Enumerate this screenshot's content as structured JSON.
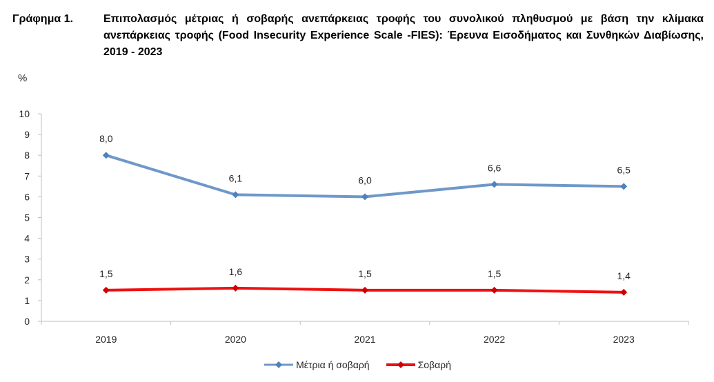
{
  "title": {
    "label": "Γράφημα 1.",
    "text": "Επιπολασμός μέτριας ή σοβαρής ανεπάρκειας τροφής του συνολικού πληθυσμού με βάση την κλίμακα ανεπάρκειας τροφής (Food Insecurity Experience Scale -FIES): Έρευνα Εισοδήματος και Συνθηκών Διαβίωσης, 2019 - 2023"
  },
  "colors": {
    "moderate": "#6f98c9",
    "severe": "#ee1111",
    "axis": "#bfbfbf",
    "text": "#262626"
  },
  "chart_data": {
    "type": "line",
    "ylabel": "%",
    "categories": [
      "2019",
      "2020",
      "2021",
      "2022",
      "2023"
    ],
    "ylim": [
      0,
      10
    ],
    "yticks": [
      0,
      1,
      2,
      3,
      4,
      5,
      6,
      7,
      8,
      9,
      10
    ],
    "grid": false,
    "legend_position": "bottom",
    "series": [
      {
        "name": "Μέτρια ή σοβαρή",
        "values": [
          8.0,
          6.1,
          6.0,
          6.6,
          6.5
        ],
        "labels": [
          "8,0",
          "6,1",
          "6,0",
          "6,6",
          "6,5"
        ],
        "color": "#6f98c9",
        "marker": "diamond"
      },
      {
        "name": "Σοβαρή",
        "values": [
          1.5,
          1.6,
          1.5,
          1.5,
          1.4
        ],
        "labels": [
          "1,5",
          "1,6",
          "1,5",
          "1,5",
          "1,4"
        ],
        "color": "#ee1111",
        "marker": "diamond"
      }
    ]
  }
}
